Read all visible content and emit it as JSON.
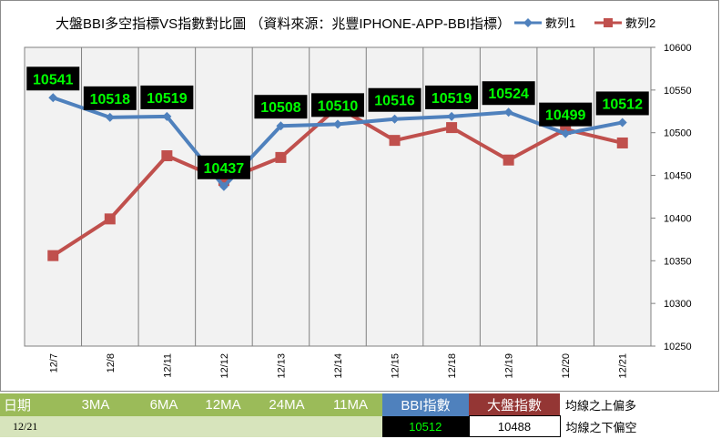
{
  "chart_data": {
    "type": "line",
    "title": "大盤BBI多空指標VS指數對比圖 （資料來源：兆豐IPHONE-APP-BBI指標）",
    "categories": [
      "12/7",
      "12/8",
      "12/11",
      "12/12",
      "12/13",
      "12/14",
      "12/15",
      "12/18",
      "12/19",
      "12/20",
      "12/21"
    ],
    "series": [
      {
        "name": "數列1",
        "color": "#4f81bd",
        "marker": "diamond",
        "values": [
          10541,
          10518,
          10519,
          10437,
          10508,
          10510,
          10516,
          10519,
          10524,
          10499,
          10512
        ]
      },
      {
        "name": "數列2",
        "color": "#c0504d",
        "marker": "square",
        "values": [
          10356,
          10399,
          10473,
          10444,
          10471,
          10530,
          10491,
          10506,
          10468,
          10504,
          10488
        ]
      }
    ],
    "data_labels": [
      "10541",
      "10518",
      "10519",
      "10437",
      "10508",
      "10510",
      "10516",
      "10519",
      "10524",
      "10499",
      "10512"
    ],
    "ylim": [
      10250,
      10600
    ],
    "yticks": [
      "10600",
      "10550",
      "10500",
      "10450",
      "10400",
      "10350",
      "10300",
      "10250"
    ],
    "label_color": "#00ff00",
    "label_bg": "#000000",
    "legend_position": "top-right"
  },
  "table": {
    "headers": [
      "日期",
      "3MA",
      "6MA",
      "12MA",
      "24MA",
      "11MA",
      "BBI指數",
      "大盤指數"
    ],
    "row": {
      "date": "12/21",
      "bbi": "10512",
      "index": "10488"
    },
    "note_top": "均線之上偏多",
    "note_bottom": "均線之下偏空"
  }
}
